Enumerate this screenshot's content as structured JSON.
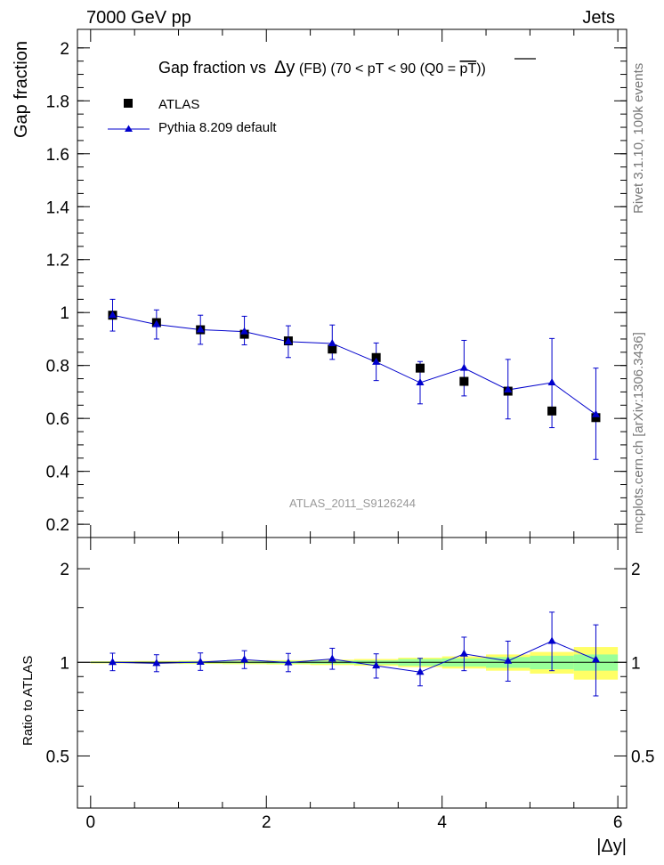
{
  "header": {
    "energy_label": "7000 GeV pp",
    "process_label": "Jets"
  },
  "side_labels": {
    "rivet": "Rivet 3.1.10,  100k events",
    "source": "mcplots.cern.ch [arXiv:1306.3436]"
  },
  "title": {
    "prefix": "Gap fraction vs ",
    "var": "Δy",
    "suffix": " (FB) (70 < pT <  90 (Q0 = ",
    "q0": "pT",
    "close": "))"
  },
  "analysis_id": "ATLAS_2011_S9126244",
  "legend": {
    "placement": "top-left",
    "data_label": "ATLAS",
    "mc_label": "Pythia 8.209 default"
  },
  "colors": {
    "data": "#000000",
    "mc": "#0000cc",
    "band_inner": "#99ff99",
    "band_outer": "#ffff66"
  },
  "chart_data": [
    {
      "type": "scatter",
      "panel": "main",
      "ylabel": "Gap fraction",
      "xlabel": "",
      "xlim": [
        -0.15,
        6.1
      ],
      "ylim": [
        0.15,
        2.07
      ],
      "yticks": [
        "0.2",
        "0.4",
        "0.6",
        "0.8",
        "1",
        "1.2",
        "1.4",
        "1.6",
        "1.8",
        "2"
      ],
      "x": [
        0.25,
        0.75,
        1.25,
        1.75,
        2.25,
        2.75,
        3.25,
        3.75,
        4.25,
        4.75,
        5.25,
        5.75
      ],
      "series": [
        {
          "name": "ATLAS",
          "marker": "square",
          "values": [
            0.99,
            0.962,
            0.935,
            0.918,
            0.893,
            0.862,
            0.83,
            0.79,
            0.74,
            0.703,
            0.628,
            0.603
          ]
        },
        {
          "name": "Pythia 8.209 default",
          "marker": "triangle",
          "values": [
            0.99,
            0.955,
            0.935,
            0.928,
            0.89,
            0.883,
            0.813,
            0.735,
            0.79,
            0.708,
            0.735,
            0.615
          ],
          "err_up": [
            0.06,
            0.055,
            0.055,
            0.058,
            0.06,
            0.07,
            0.072,
            0.08,
            0.105,
            0.115,
            0.167,
            0.175
          ],
          "err_down": [
            0.06,
            0.055,
            0.055,
            0.05,
            0.06,
            0.06,
            0.07,
            0.08,
            0.105,
            0.11,
            0.17,
            0.17
          ]
        }
      ]
    },
    {
      "type": "line",
      "panel": "ratio",
      "ylabel": "Ratio to ATLAS",
      "xlabel": "|Δy|",
      "xlim": [
        -0.15,
        6.1
      ],
      "ylim": [
        0.34,
        2.52
      ],
      "y_scale": "log",
      "xticks": [
        "0",
        "2",
        "4",
        "6"
      ],
      "yticks": [
        "0.5",
        "1",
        "2"
      ],
      "x": [
        0.25,
        0.75,
        1.25,
        1.75,
        2.25,
        2.75,
        3.25,
        3.75,
        4.25,
        4.75,
        5.25,
        5.75
      ],
      "bands": {
        "inner_half_width": [
          0.005,
          0.005,
          0.007,
          0.008,
          0.01,
          0.012,
          0.015,
          0.025,
          0.03,
          0.04,
          0.05,
          0.06
        ],
        "outer_half_width": [
          0.008,
          0.01,
          0.012,
          0.014,
          0.016,
          0.02,
          0.025,
          0.035,
          0.045,
          0.06,
          0.08,
          0.12
        ]
      },
      "series": [
        {
          "name": "Pythia 8.209 default",
          "values": [
            1.0,
            0.993,
            1.002,
            1.02,
            0.998,
            1.025,
            0.975,
            0.93,
            1.065,
            1.01,
            1.17,
            1.02
          ],
          "err_up": [
            0.07,
            0.065,
            0.07,
            0.07,
            0.07,
            0.085,
            0.09,
            0.1,
            0.14,
            0.16,
            0.28,
            0.3
          ],
          "err_down": [
            0.06,
            0.06,
            0.06,
            0.065,
            0.065,
            0.075,
            0.085,
            0.09,
            0.125,
            0.14,
            0.23,
            0.24
          ]
        }
      ]
    }
  ]
}
